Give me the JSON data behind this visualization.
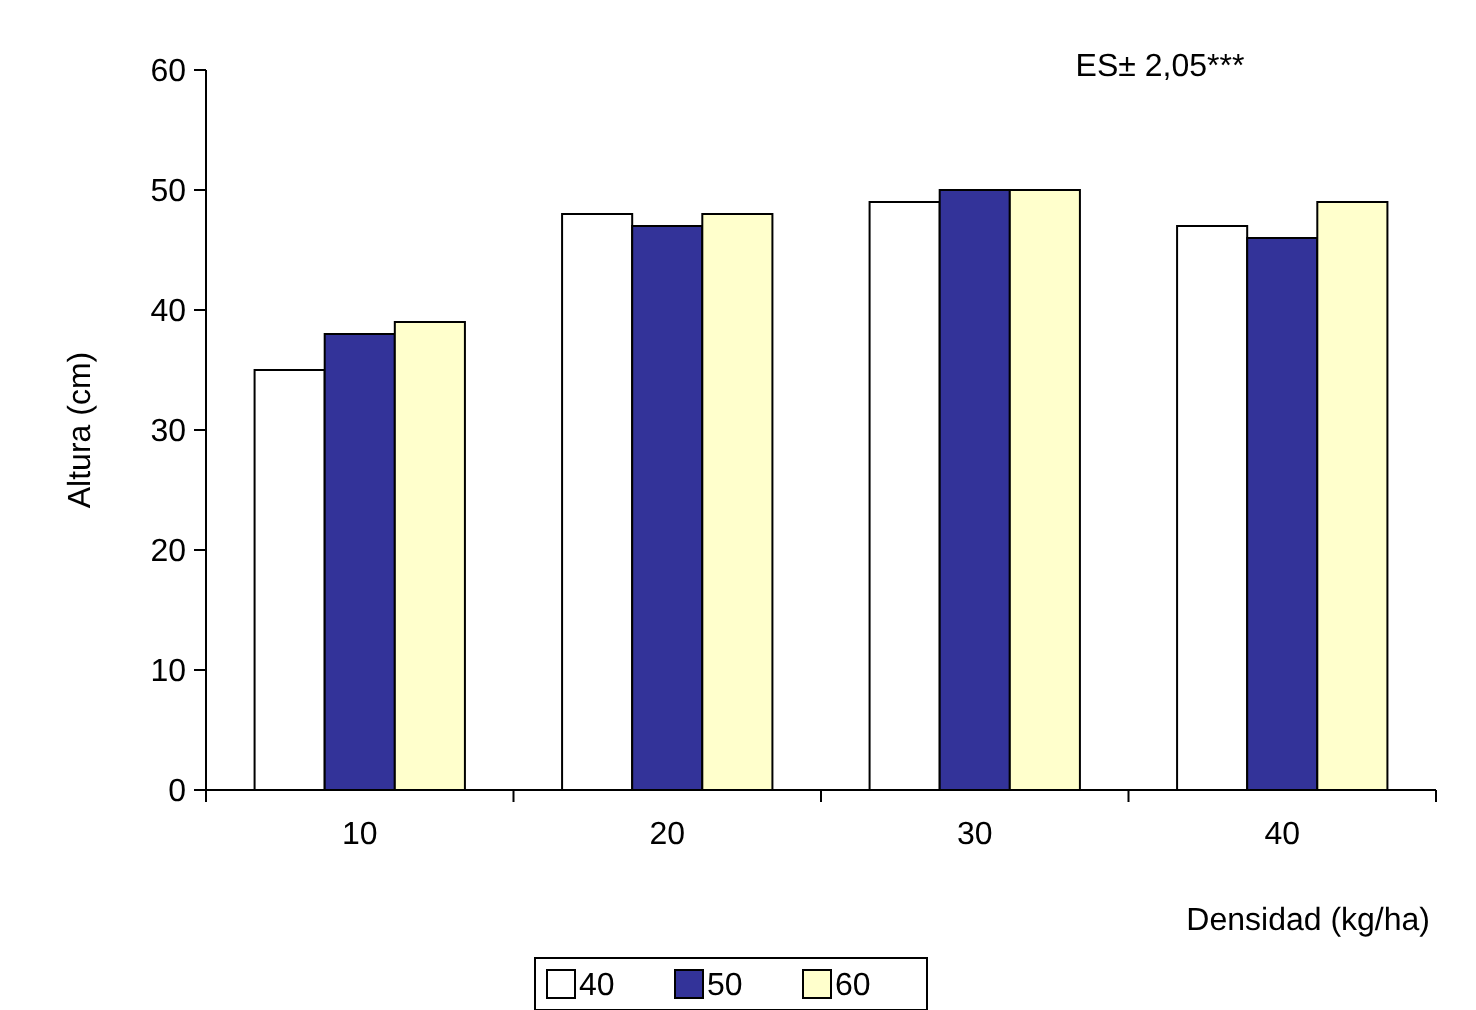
{
  "chart_data": {
    "type": "bar",
    "xlabel": "Densidad (kg/ha)",
    "ylabel": "Altura (cm)",
    "categories": [
      "10",
      "20",
      "30",
      "40"
    ],
    "series": [
      {
        "name": "40",
        "color": "#ffffff",
        "values": [
          35,
          48,
          49,
          47
        ]
      },
      {
        "name": "50",
        "color": "#333399",
        "values": [
          38,
          47,
          50,
          46
        ]
      },
      {
        "name": "60",
        "color": "#ffffcc",
        "values": [
          39,
          48,
          50,
          49
        ]
      }
    ],
    "ylim": [
      0,
      60
    ],
    "yticks": [
      0,
      10,
      20,
      30,
      40,
      50,
      60
    ],
    "grid": false,
    "legend": "bottom",
    "annotations": [
      "ES± 2,05***"
    ]
  }
}
